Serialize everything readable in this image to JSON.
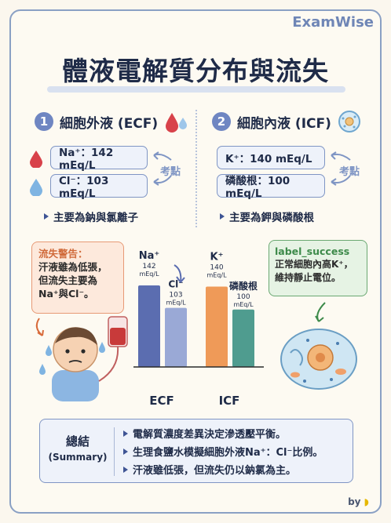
{
  "brand": "ExamWise",
  "title": "體液電解質分布與流失",
  "ecf": {
    "num": "1",
    "heading": "細胞外液 (ECF)",
    "na_label": "Na⁺：142 mEq/L",
    "cl_label": "Cl⁻：103 mEq/L",
    "kaodian": "考點",
    "bullet": "主要為鈉與氯離子"
  },
  "icf": {
    "num": "2",
    "heading": "細胞內液 (ICF)",
    "k_label": "K⁺：140 mEq/L",
    "p_label": "磷酸根：100 mEq/L",
    "kaodian": "考點",
    "bullet": "主要為鉀與磷酸根"
  },
  "warning": {
    "title": "流失警告：",
    "lines": [
      "汗液雖為低張，",
      "但流失主要為",
      "Na⁺與Cl⁻。"
    ]
  },
  "success": {
    "title": "label_success",
    "lines": [
      "正常細胞內高K⁺，",
      "維持靜止電位。"
    ]
  },
  "chart_data": {
    "type": "bar",
    "groups": [
      "ECF",
      "ICF"
    ],
    "bars": [
      {
        "group": "ECF",
        "ion": "Na⁺",
        "value": 142,
        "unit": "mEq/L",
        "color": "#5b6db0"
      },
      {
        "group": "ECF",
        "ion": "Cl⁻",
        "value": 103,
        "unit": "mEq/L",
        "color": "#9aa9d6"
      },
      {
        "group": "ICF",
        "ion": "K⁺",
        "value": 140,
        "unit": "mEq/L",
        "color": "#ef9a58"
      },
      {
        "group": "ICF",
        "ion": "磷酸根",
        "value": 100,
        "unit": "mEq/L",
        "color": "#4f9c8f"
      }
    ]
  },
  "summary": {
    "title": "總結",
    "title_en": "(Summary)",
    "items": [
      "電解質濃度差異決定滲透壓平衡。",
      "生理食鹽水模擬細胞外液Na⁺：Cl⁻比例。",
      "汗液雖低張，但流失仍以鈉氯為主。"
    ]
  },
  "by": "by",
  "colors": {
    "accent": "#6f86c2",
    "warn": "#e79a76",
    "success": "#6aa872"
  }
}
